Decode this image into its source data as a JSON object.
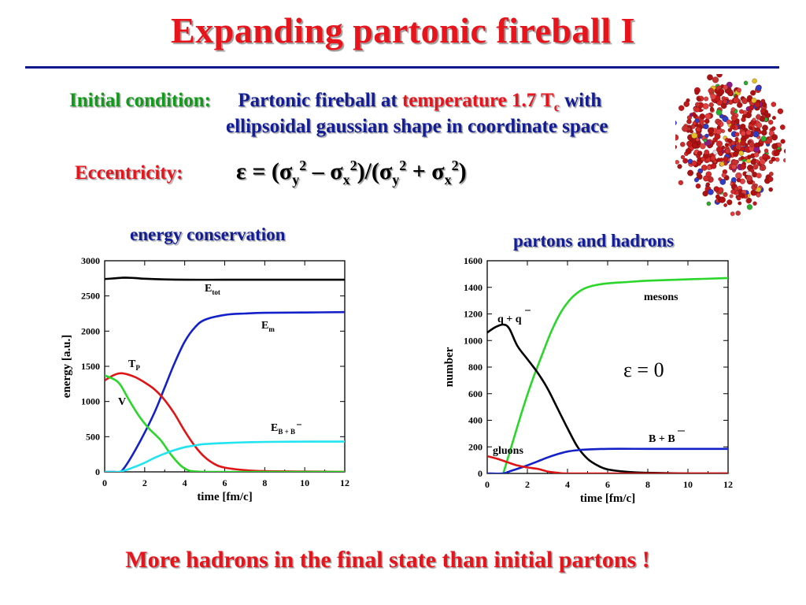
{
  "slide": {
    "title": "Expanding partonic fireball I",
    "initial_condition_label": "Initial condition:",
    "ic_text_1": "Partonic fireball at",
    "ic_text_temp": "temperature 1.7 T",
    "ic_text_temp_sub": "c",
    "ic_text_2": "with",
    "ic_line2": "ellipsoidal gaussian shape in coordinate space",
    "eccentricity_label": "Eccentricity:",
    "conclusion": "More hadrons in the final state than initial partons !",
    "fireball_image": "fireball-particles-icon"
  },
  "chart_data": [
    {
      "type": "line",
      "title": "energy conservation",
      "xlabel": "time [fm/c]",
      "ylabel": "energy [a.u.]",
      "xlim": [
        0,
        12
      ],
      "ylim": [
        0,
        3000
      ],
      "xticks": [
        0,
        2,
        4,
        6,
        8,
        10,
        12
      ],
      "yticks": [
        0,
        500,
        1000,
        1500,
        2000,
        2500,
        3000
      ],
      "grid": false,
      "series": [
        {
          "name": "E_tot",
          "label": "E",
          "sub": "tot",
          "color": "#000000",
          "x": [
            0,
            0.5,
            1,
            1.5,
            2,
            3,
            4,
            6,
            8,
            10,
            12
          ],
          "y": [
            2740,
            2750,
            2760,
            2755,
            2745,
            2735,
            2730,
            2730,
            2730,
            2730,
            2730
          ]
        },
        {
          "name": "E_m",
          "label": "E",
          "sub": "m",
          "color": "#1421c8",
          "x": [
            0,
            0.5,
            0.8,
            1.2,
            1.8,
            2.5,
            3,
            3.5,
            4,
            4.5,
            5,
            6,
            7,
            8,
            10,
            12
          ],
          "y": [
            0,
            0,
            0,
            150,
            450,
            850,
            1200,
            1550,
            1850,
            2050,
            2160,
            2230,
            2250,
            2260,
            2265,
            2270
          ]
        },
        {
          "name": "T_P",
          "label": "T",
          "sub": "P",
          "color": "#e01414",
          "x": [
            0,
            0.5,
            0.9,
            1.5,
            2,
            2.5,
            3,
            3.5,
            4,
            4.5,
            5,
            5.5,
            6,
            7,
            8,
            10,
            12
          ],
          "y": [
            1300,
            1380,
            1400,
            1350,
            1270,
            1170,
            1020,
            820,
            580,
            370,
            210,
            110,
            60,
            25,
            10,
            5,
            0
          ]
        },
        {
          "name": "V",
          "label": "V",
          "sub": "",
          "color": "#2ad62a",
          "x": [
            0,
            0.5,
            0.8,
            1.2,
            1.7,
            2.2,
            2.8,
            3.3,
            3.8,
            4.2,
            4.6,
            5,
            6,
            8,
            10,
            12
          ],
          "y": [
            1370,
            1310,
            1230,
            1030,
            800,
            620,
            450,
            250,
            90,
            20,
            5,
            0,
            0,
            0,
            0,
            0
          ]
        },
        {
          "name": "E_B+Bbar",
          "label": "E",
          "sub": "B + B",
          "color": "#22e4f0",
          "x": [
            0,
            0.7,
            1,
            1.5,
            2,
            2.5,
            3,
            3.5,
            4,
            4.5,
            5,
            6,
            7,
            8,
            10,
            12
          ],
          "y": [
            0,
            0,
            20,
            70,
            130,
            200,
            260,
            310,
            350,
            375,
            395,
            410,
            420,
            425,
            430,
            430
          ]
        }
      ]
    },
    {
      "type": "line",
      "title": "partons and hadrons",
      "xlabel": "time [fm/c]",
      "ylabel": "number",
      "xlim": [
        0,
        12
      ],
      "ylim": [
        0,
        1600
      ],
      "xticks": [
        0,
        2,
        4,
        6,
        8,
        10,
        12
      ],
      "yticks": [
        0,
        200,
        400,
        600,
        800,
        1000,
        1200,
        1400,
        1600
      ],
      "grid": false,
      "annotation": "ε = 0",
      "series": [
        {
          "name": "mesons",
          "label": "mesons",
          "color": "#2ad62a",
          "x": [
            0.8,
            1.2,
            1.7,
            2.2,
            2.7,
            3.2,
            3.7,
            4.2,
            4.7,
            5.2,
            6,
            7,
            8,
            10,
            12
          ],
          "y": [
            0,
            200,
            450,
            680,
            880,
            1070,
            1220,
            1320,
            1380,
            1410,
            1430,
            1440,
            1450,
            1460,
            1470
          ]
        },
        {
          "name": "q + qbar",
          "label": "q + q",
          "color": "#000000",
          "x": [
            0,
            0.4,
            0.8,
            1.1,
            1.5,
            2,
            2.5,
            3,
            3.5,
            4,
            4.5,
            5,
            5.5,
            6,
            7,
            8,
            10,
            12
          ],
          "y": [
            1060,
            1100,
            1120,
            1090,
            960,
            860,
            760,
            640,
            490,
            340,
            200,
            110,
            60,
            30,
            12,
            5,
            0,
            0
          ]
        },
        {
          "name": "B + Bbar",
          "label": "B + B",
          "color": "#1421c8",
          "x": [
            0,
            0.8,
            1.2,
            1.8,
            2.5,
            3,
            3.5,
            4,
            4.5,
            5,
            6,
            8,
            10,
            12
          ],
          "y": [
            0,
            0,
            20,
            50,
            90,
            120,
            145,
            165,
            175,
            180,
            185,
            185,
            185,
            185
          ]
        },
        {
          "name": "gluons",
          "label": "gluons",
          "color": "#e01414",
          "x": [
            0,
            0.5,
            1,
            1.5,
            2,
            2.5,
            3,
            3.5,
            4,
            6,
            8,
            10,
            12
          ],
          "y": [
            130,
            110,
            85,
            60,
            45,
            35,
            15,
            5,
            0,
            0,
            0,
            0,
            0
          ]
        }
      ]
    }
  ]
}
